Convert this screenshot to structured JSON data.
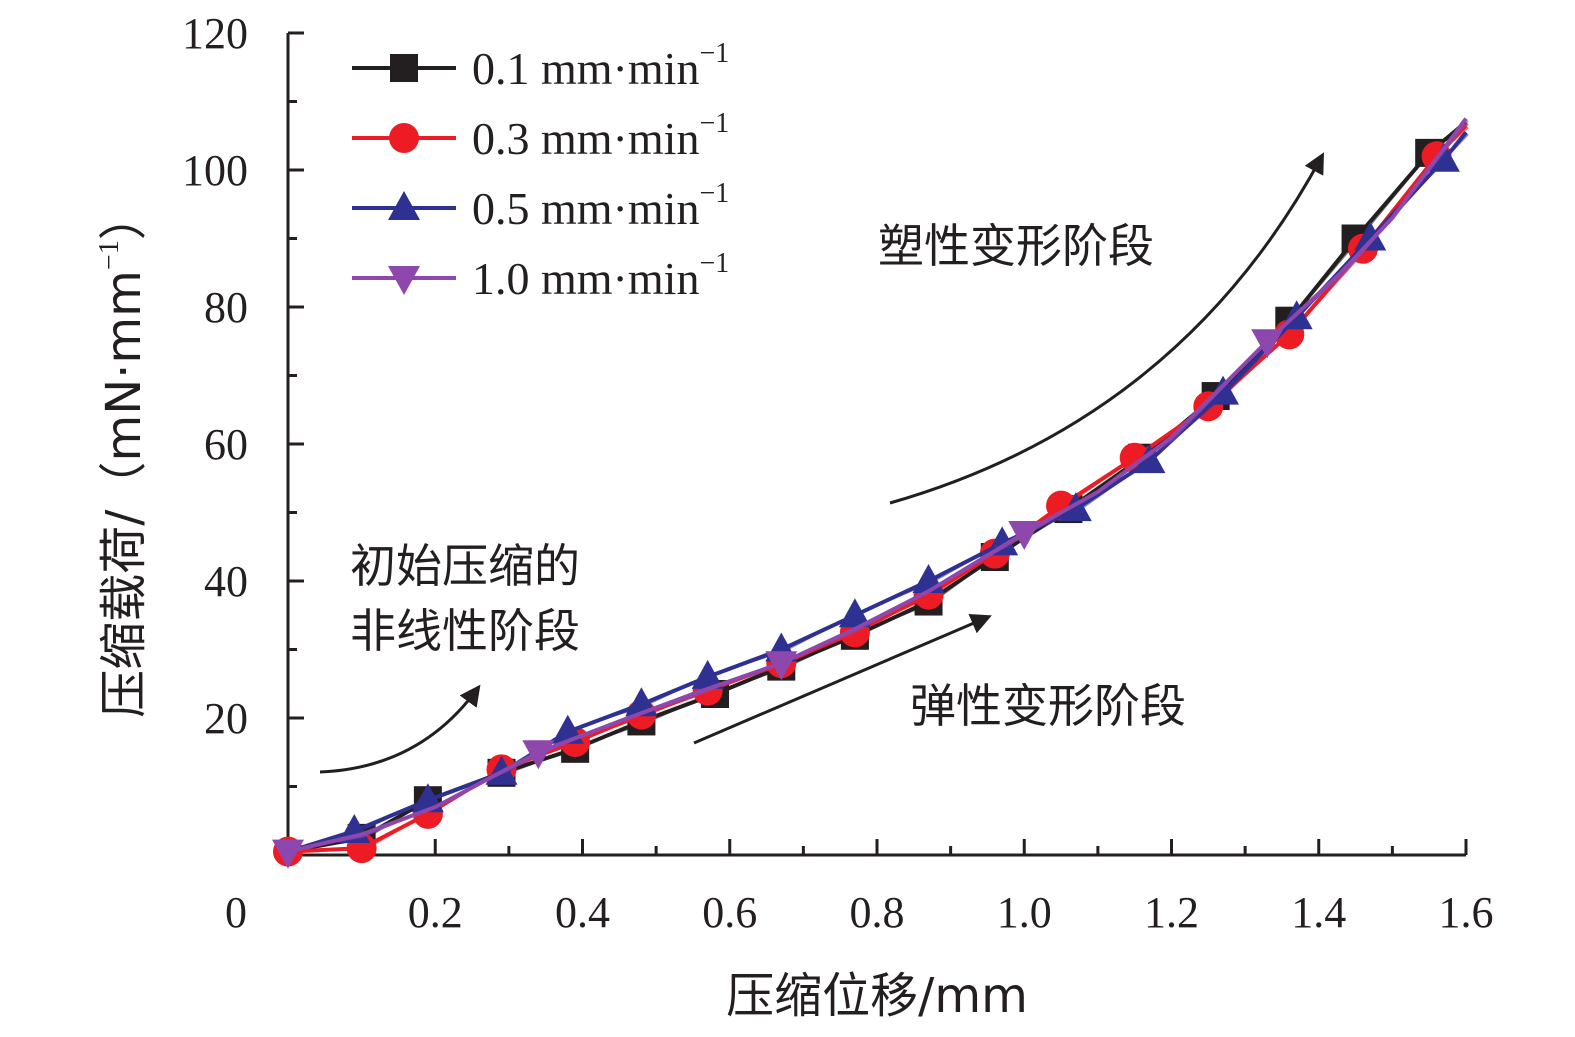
{
  "chart_data": {
    "type": "line",
    "xlabel": "压缩位移/mm",
    "ylabel_main": "压缩载荷/（mN·mm",
    "ylabel_sup": "−1",
    "ylabel_close": "）",
    "xlim": [
      0,
      1.6
    ],
    "ylim": [
      0,
      120
    ],
    "x_ticks": [
      {
        "value": 0.2,
        "label": "0.2"
      },
      {
        "value": 0.4,
        "label": "0.4"
      },
      {
        "value": 0.6,
        "label": "0.6"
      },
      {
        "value": 0.8,
        "label": "0.8"
      },
      {
        "value": 1.0,
        "label": "1.0"
      },
      {
        "value": 1.2,
        "label": "1.2"
      },
      {
        "value": 1.4,
        "label": "1.4"
      },
      {
        "value": 1.6,
        "label": "1.6"
      }
    ],
    "y_ticks": [
      {
        "value": 20,
        "label": "20"
      },
      {
        "value": 40,
        "label": "40"
      },
      {
        "value": 60,
        "label": "60"
      },
      {
        "value": 80,
        "label": "80"
      },
      {
        "value": 100,
        "label": "100"
      },
      {
        "value": 120,
        "label": "120"
      }
    ],
    "origin_label": "0",
    "grid": false,
    "legend_position": "top-left",
    "series": [
      {
        "name": "0.1 mm·min",
        "name_sup": "−1",
        "color": "#231f20",
        "marker": "square",
        "x": [
          0.0,
          0.1,
          0.19,
          0.29,
          0.39,
          0.48,
          0.58,
          0.67,
          0.77,
          0.87,
          0.96,
          1.06,
          1.16,
          1.26,
          1.36,
          1.45,
          1.55,
          1.6
        ],
        "y": [
          0.5,
          2.5,
          8.0,
          12.0,
          15.5,
          19.5,
          23.5,
          27.5,
          32.0,
          37.0,
          43.5,
          50.5,
          58.0,
          67.0,
          78.0,
          90.0,
          102.5,
          107.0
        ],
        "marker_indices": [
          1,
          2,
          3,
          4,
          5,
          6,
          7,
          8,
          9,
          10,
          11,
          12,
          13,
          14,
          15,
          16
        ]
      },
      {
        "name": "0.3 mm·min",
        "name_sup": "−1",
        "color": "#ed1c24",
        "marker": "circle",
        "x": [
          0.0,
          0.1,
          0.19,
          0.29,
          0.39,
          0.48,
          0.57,
          0.67,
          0.77,
          0.87,
          0.96,
          1.05,
          1.15,
          1.25,
          1.36,
          1.46,
          1.56,
          1.6
        ],
        "y": [
          0.5,
          1.0,
          6.0,
          12.5,
          16.5,
          20.5,
          24.0,
          28.0,
          32.5,
          38.0,
          44.0,
          51.0,
          58.0,
          65.5,
          76.0,
          88.5,
          102.0,
          106.5
        ],
        "marker_indices": [
          0,
          1,
          2,
          3,
          4,
          5,
          6,
          7,
          8,
          9,
          10,
          11,
          12,
          13,
          14,
          15,
          16
        ]
      },
      {
        "name": "0.5 mm·min",
        "name_sup": "−1",
        "color": "#2e3192",
        "marker": "triangle-up",
        "x": [
          0.0,
          0.09,
          0.19,
          0.29,
          0.38,
          0.48,
          0.57,
          0.67,
          0.77,
          0.87,
          0.97,
          1.07,
          1.17,
          1.27,
          1.37,
          1.47,
          1.57,
          1.6
        ],
        "y": [
          0.5,
          3.5,
          8.0,
          12.0,
          18.0,
          22.0,
          26.0,
          30.0,
          35.0,
          40.0,
          45.5,
          50.5,
          57.5,
          67.5,
          78.5,
          90.0,
          101.5,
          105.5
        ],
        "marker_indices": [
          1,
          2,
          3,
          4,
          5,
          6,
          7,
          8,
          9,
          10,
          11,
          12,
          13,
          14,
          15,
          16
        ]
      },
      {
        "name": "1.0 mm·min",
        "name_sup": "−1",
        "color": "#8e47ad",
        "marker": "triangle-down",
        "x": [
          0.0,
          0.1,
          0.2,
          0.34,
          0.45,
          0.55,
          0.67,
          0.77,
          0.87,
          1.0,
          1.1,
          1.2,
          1.33,
          1.43,
          1.5,
          1.6
        ],
        "y": [
          0.5,
          3.0,
          7.0,
          15.0,
          19.5,
          23.5,
          28.0,
          33.0,
          38.5,
          47.0,
          53.0,
          61.0,
          75.0,
          85.0,
          93.0,
          107.5
        ],
        "marker_indices": [
          0,
          3,
          6,
          9,
          12
        ]
      }
    ],
    "annotations": [
      {
        "id": "initial",
        "lines": [
          "初始压缩的",
          "非线性阶段"
        ]
      },
      {
        "id": "elastic",
        "lines": [
          "弹性变形阶段"
        ]
      },
      {
        "id": "plastic",
        "lines": [
          "塑性变形阶段"
        ]
      }
    ]
  }
}
